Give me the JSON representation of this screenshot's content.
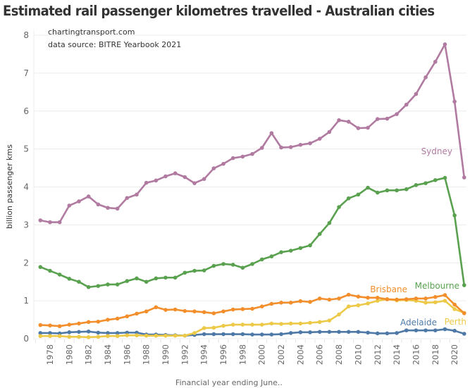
{
  "title": "Estimated rail passenger kilometres travelled - Australian cities",
  "annotations": [
    "chartingtransport.com",
    "data source: BITRE Yearbook 2021"
  ],
  "chart_data": {
    "type": "line",
    "title": "Estimated rail passenger kilometres travelled - Australian cities",
    "xlabel": "Financial year ending June..",
    "ylabel": "billion passenger kms",
    "ylim": [
      0,
      8
    ],
    "xlim": [
      1977,
      2021
    ],
    "yticks": [
      0,
      1,
      2,
      3,
      4,
      5,
      6,
      7,
      8
    ],
    "xticks": [
      1978,
      1980,
      1982,
      1984,
      1986,
      1988,
      1990,
      1992,
      1994,
      1996,
      1998,
      2000,
      2002,
      2004,
      2006,
      2008,
      2010,
      2012,
      2014,
      2016,
      2018,
      2020
    ],
    "grid": true,
    "legend": "inline labels at line ends",
    "x": [
      1977,
      1978,
      1979,
      1980,
      1981,
      1982,
      1983,
      1984,
      1985,
      1986,
      1987,
      1988,
      1989,
      1990,
      1991,
      1992,
      1993,
      1994,
      1995,
      1996,
      1997,
      1998,
      1999,
      2000,
      2001,
      2002,
      2003,
      2004,
      2005,
      2006,
      2007,
      2008,
      2009,
      2010,
      2011,
      2012,
      2013,
      2014,
      2015,
      2016,
      2017,
      2018,
      2019,
      2020,
      2021
    ],
    "series": [
      {
        "name": "Sydney",
        "color": "#b07aa1",
        "values": [
          3.12,
          3.07,
          3.07,
          3.51,
          3.62,
          3.75,
          3.54,
          3.45,
          3.43,
          3.71,
          3.8,
          4.11,
          4.17,
          4.28,
          4.36,
          4.26,
          4.1,
          4.21,
          4.49,
          4.61,
          4.76,
          4.8,
          4.87,
          5.03,
          5.42,
          5.04,
          5.05,
          5.11,
          5.15,
          5.27,
          5.45,
          5.76,
          5.72,
          5.55,
          5.56,
          5.79,
          5.8,
          5.92,
          6.17,
          6.45,
          6.89,
          7.3,
          7.76,
          6.25,
          4.25
        ]
      },
      {
        "name": "Melbourne",
        "color": "#59a14f",
        "values": [
          1.89,
          1.79,
          1.69,
          1.58,
          1.5,
          1.36,
          1.39,
          1.43,
          1.43,
          1.52,
          1.59,
          1.5,
          1.59,
          1.61,
          1.61,
          1.74,
          1.79,
          1.8,
          1.92,
          1.97,
          1.95,
          1.87,
          1.97,
          2.09,
          2.17,
          2.28,
          2.32,
          2.39,
          2.46,
          2.76,
          3.05,
          3.47,
          3.7,
          3.8,
          3.98,
          3.85,
          3.91,
          3.91,
          3.94,
          4.05,
          4.1,
          4.18,
          4.24,
          3.25,
          1.41
        ]
      },
      {
        "name": "Brisbane",
        "color": "#f28e2b",
        "values": [
          0.36,
          0.35,
          0.33,
          0.37,
          0.4,
          0.44,
          0.45,
          0.5,
          0.53,
          0.59,
          0.66,
          0.72,
          0.83,
          0.76,
          0.77,
          0.73,
          0.72,
          0.7,
          0.67,
          0.72,
          0.77,
          0.78,
          0.79,
          0.85,
          0.92,
          0.95,
          0.95,
          0.99,
          0.97,
          1.06,
          1.03,
          1.06,
          1.16,
          1.11,
          1.08,
          1.08,
          1.04,
          1.03,
          1.04,
          1.06,
          1.06,
          1.1,
          1.15,
          0.9,
          0.67
        ]
      },
      {
        "name": "Perth",
        "color": "#edc948",
        "values": [
          0.07,
          0.07,
          0.07,
          0.05,
          0.05,
          0.04,
          0.05,
          0.07,
          0.07,
          0.09,
          0.09,
          0.08,
          0.08,
          0.08,
          0.08,
          0.08,
          0.15,
          0.28,
          0.29,
          0.34,
          0.37,
          0.37,
          0.37,
          0.37,
          0.4,
          0.39,
          0.4,
          0.4,
          0.42,
          0.44,
          0.48,
          0.64,
          0.85,
          0.88,
          0.93,
          1.0,
          1.04,
          1.01,
          1.02,
          1.0,
          0.95,
          0.96,
          1.0,
          0.78,
          0.68
        ]
      },
      {
        "name": "Adelaide",
        "color": "#4e79a7",
        "values": [
          0.15,
          0.15,
          0.14,
          0.17,
          0.18,
          0.19,
          0.16,
          0.15,
          0.15,
          0.16,
          0.16,
          0.11,
          0.11,
          0.1,
          0.09,
          0.08,
          0.1,
          0.12,
          0.12,
          0.12,
          0.12,
          0.12,
          0.11,
          0.11,
          0.11,
          0.12,
          0.15,
          0.17,
          0.17,
          0.18,
          0.18,
          0.18,
          0.18,
          0.18,
          0.16,
          0.14,
          0.14,
          0.15,
          0.22,
          0.22,
          0.22,
          0.22,
          0.25,
          0.21,
          0.13
        ]
      }
    ]
  }
}
